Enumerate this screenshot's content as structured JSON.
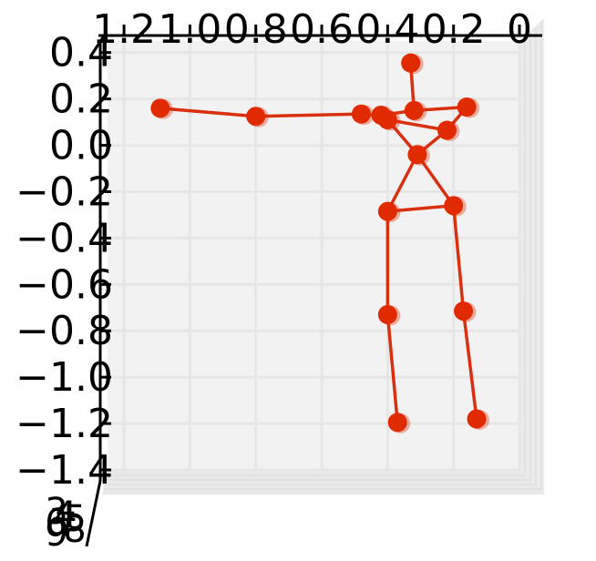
{
  "chart_data": {
    "type": "scatter",
    "subtype": "3d-skeleton",
    "title": "",
    "xlabel": "",
    "ylabel": "",
    "grid": true,
    "xlim": [
      1.25,
      0.0
    ],
    "ylim": [
      -1.4,
      0.45
    ],
    "x_tick_labels": [
      "1.2",
      "1.0",
      "0.8",
      "0.6",
      "0.4",
      "0.2",
      "0"
    ],
    "x_tick_values": [
      1.2,
      1.0,
      0.8,
      0.6,
      0.4,
      0.2,
      0.0
    ],
    "y_tick_labels": [
      "0.4",
      "0.2",
      "0.0",
      "−0.2",
      "−0.4",
      "−0.6",
      "−0.8",
      "−1.0",
      "−1.2",
      "−1.4"
    ],
    "y_tick_values": [
      0.4,
      0.2,
      0.0,
      -0.2,
      -0.4,
      -0.6,
      -0.8,
      -1.0,
      -1.2,
      -1.4
    ],
    "z_tick_labels": [
      "3",
      "4",
      "5",
      "6",
      "7",
      "8",
      "9"
    ],
    "colors": {
      "joint": "#e02a00",
      "bone": "#d83010",
      "pane": "#f2f2f2",
      "grid": "#e6e6e6",
      "axis": "#000000"
    },
    "joints": [
      {
        "name": "head",
        "x": 0.33,
        "y": 0.355
      },
      {
        "name": "neck",
        "x": 0.32,
        "y": 0.15
      },
      {
        "name": "right-shoulder",
        "x": 0.16,
        "y": 0.165
      },
      {
        "name": "right-elbow",
        "x": 0.22,
        "y": 0.065
      },
      {
        "name": "left-shoulder",
        "x": 0.42,
        "y": 0.13
      },
      {
        "name": "left-shoulder-b",
        "x": 0.4,
        "y": 0.11
      },
      {
        "name": "left-elbow",
        "x": 0.48,
        "y": 0.135
      },
      {
        "name": "left-wrist",
        "x": 0.8,
        "y": 0.125
      },
      {
        "name": "left-hand",
        "x": 1.09,
        "y": 0.16
      },
      {
        "name": "pelvis",
        "x": 0.31,
        "y": -0.04
      },
      {
        "name": "left-hip",
        "x": 0.4,
        "y": -0.285
      },
      {
        "name": "right-hip",
        "x": 0.2,
        "y": -0.26
      },
      {
        "name": "left-knee",
        "x": 0.4,
        "y": -0.73
      },
      {
        "name": "right-knee",
        "x": 0.17,
        "y": -0.715
      },
      {
        "name": "left-ankle",
        "x": 0.37,
        "y": -1.195
      },
      {
        "name": "right-ankle",
        "x": 0.13,
        "y": -1.18
      }
    ],
    "bones": [
      [
        "head",
        "neck"
      ],
      [
        "neck",
        "right-shoulder"
      ],
      [
        "right-shoulder",
        "right-elbow"
      ],
      [
        "neck",
        "left-shoulder"
      ],
      [
        "left-shoulder",
        "left-elbow"
      ],
      [
        "left-elbow",
        "left-wrist"
      ],
      [
        "left-wrist",
        "left-hand"
      ],
      [
        "left-shoulder-b",
        "right-elbow"
      ],
      [
        "right-elbow",
        "pelvis"
      ],
      [
        "left-shoulder-b",
        "pelvis"
      ],
      [
        "pelvis",
        "left-hip"
      ],
      [
        "pelvis",
        "right-hip"
      ],
      [
        "left-hip",
        "right-hip"
      ],
      [
        "left-hip",
        "left-knee"
      ],
      [
        "left-knee",
        "left-ankle"
      ],
      [
        "right-hip",
        "right-knee"
      ],
      [
        "right-knee",
        "right-ankle"
      ]
    ]
  }
}
